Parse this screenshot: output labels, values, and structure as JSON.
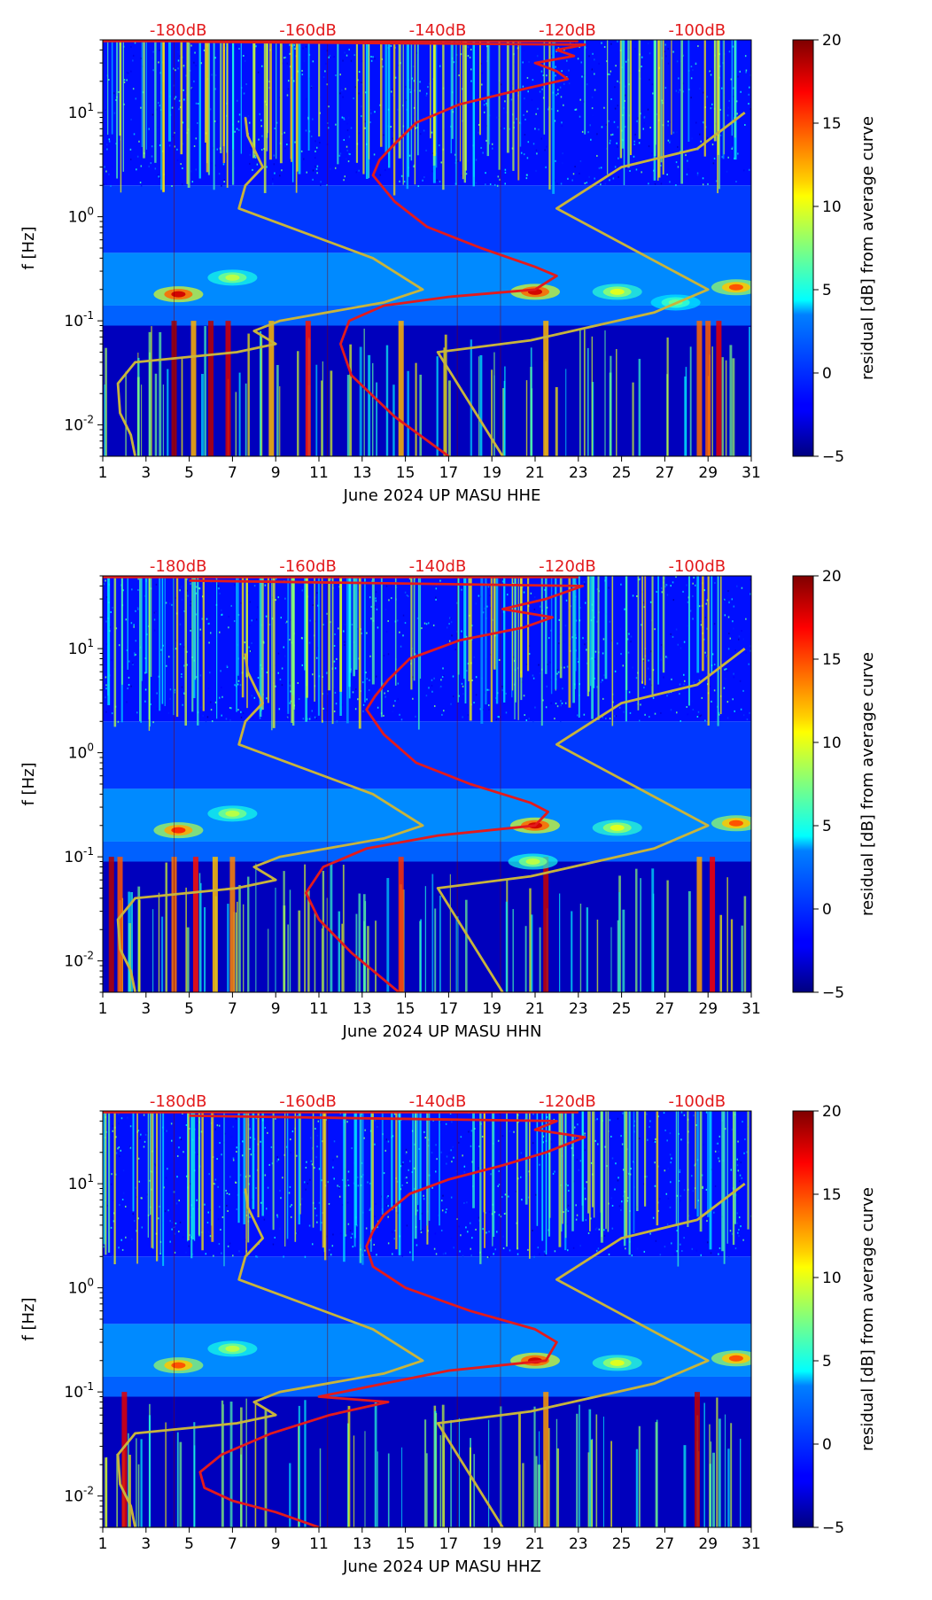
{
  "figure": {
    "colorbar": {
      "label": "residual [dB] from average curve",
      "ticks": [
        -5,
        0,
        5,
        10,
        15,
        20
      ],
      "range": [
        -5,
        20
      ]
    },
    "colors": {
      "noise_curve": "#e31a1c",
      "model_curve": "#c8b43c",
      "db_label": "#e31a1c",
      "background_low": "#00008f",
      "background_mid": "#1e5cff"
    }
  },
  "chart_data": [
    {
      "type": "heatmap",
      "title": "",
      "xlabel": "June 2024 UP MASU  HHE",
      "ylabel": "f [Hz]",
      "x_ticks": [
        "1",
        "3",
        "5",
        "7",
        "9",
        "11",
        "13",
        "15",
        "17",
        "19",
        "21",
        "23",
        "25",
        "27",
        "29",
        "31"
      ],
      "xlim": [
        1,
        31
      ],
      "ylim_hz": [
        0.005,
        50
      ],
      "y_ticks": [
        {
          "exp": "-2",
          "value": 0.01
        },
        {
          "exp": "-1",
          "value": 0.1
        },
        {
          "exp": "0",
          "value": 1
        },
        {
          "exp": "1",
          "value": 10
        }
      ],
      "top_db_labels": [
        "-180dB",
        "-160dB",
        "-140dB",
        "-120dB",
        "-100dB"
      ],
      "top_db_days": [
        4.0,
        10.0,
        16.0,
        22.0,
        28.0
      ],
      "vertical_guide_days": [
        4.3,
        11.4,
        17.4,
        19.4
      ],
      "series": [
        {
          "name": "noise curve (red)",
          "days": [
            17.0,
            14.5,
            12.5,
            12.0,
            12.4,
            14.0,
            17.0,
            21.0,
            22.0,
            21.0,
            18.5,
            16.0,
            14.5,
            13.5,
            13.8,
            14.5,
            15.5,
            17.5,
            20.0,
            22.5,
            22.0,
            21.0,
            22.8,
            22.0,
            23.3,
            5.0
          ],
          "hz": [
            0.005,
            0.012,
            0.03,
            0.06,
            0.1,
            0.14,
            0.17,
            0.2,
            0.27,
            0.33,
            0.5,
            0.8,
            1.4,
            2.5,
            3.5,
            5.0,
            8.0,
            12.0,
            16.0,
            21.0,
            25.0,
            30.0,
            35.0,
            40.0,
            45.0,
            48.0
          ]
        },
        {
          "name": "model curve (olive)",
          "days": [
            2.5,
            2.3,
            1.8,
            1.7,
            2.5,
            7.2,
            9.0,
            8.0,
            9.2,
            14.0,
            15.8,
            13.5,
            7.3,
            7.6,
            8.4,
            7.7,
            7.6
          ],
          "hz": [
            0.005,
            0.008,
            0.013,
            0.025,
            0.04,
            0.05,
            0.06,
            0.08,
            0.1,
            0.15,
            0.2,
            0.4,
            1.2,
            2.0,
            3.0,
            6.0,
            9.0
          ]
        },
        {
          "name": "model curve (olive, right)",
          "days": [
            19.5,
            16.5,
            20.8,
            26.5,
            29.0,
            22.0,
            25.0,
            28.5,
            30.7
          ],
          "hz": [
            0.005,
            0.05,
            0.065,
            0.12,
            0.2,
            1.2,
            3.0,
            4.5,
            10.0
          ]
        }
      ],
      "hotspots": [
        {
          "day": 4.5,
          "hz": 0.18,
          "level": 18
        },
        {
          "day": 21.0,
          "hz": 0.19,
          "level": 18
        },
        {
          "day": 30.3,
          "hz": 0.21,
          "level": 15
        },
        {
          "day": 24.8,
          "hz": 0.19,
          "level": 10
        },
        {
          "day": 7.0,
          "hz": 0.26,
          "level": 9
        },
        {
          "day": 27.5,
          "hz": 0.15,
          "level": 7
        }
      ],
      "low_band_strong_days": [
        4.3,
        5.2,
        6.0,
        6.8,
        28.6,
        29.0,
        29.5,
        21.5,
        14.8,
        8.8,
        10.5
      ]
    },
    {
      "type": "heatmap",
      "title": "",
      "xlabel": "June 2024 UP MASU  HHN",
      "ylabel": "f [Hz]",
      "x_ticks": [
        "1",
        "3",
        "5",
        "7",
        "9",
        "11",
        "13",
        "15",
        "17",
        "19",
        "21",
        "23",
        "25",
        "27",
        "29",
        "31"
      ],
      "xlim": [
        1,
        31
      ],
      "ylim_hz": [
        0.005,
        50
      ],
      "y_ticks": [
        {
          "exp": "-2",
          "value": 0.01
        },
        {
          "exp": "-1",
          "value": 0.1
        },
        {
          "exp": "0",
          "value": 1
        },
        {
          "exp": "1",
          "value": 10
        }
      ],
      "top_db_labels": [
        "-180dB",
        "-160dB",
        "-140dB",
        "-120dB",
        "-100dB"
      ],
      "top_db_days": [
        4.0,
        10.0,
        16.0,
        22.0,
        28.0
      ],
      "vertical_guide_days": [
        4.3,
        11.4,
        17.4,
        19.4
      ],
      "series": [
        {
          "name": "noise curve (red)",
          "days": [
            14.7,
            12.5,
            11.0,
            10.4,
            11.2,
            13.2,
            16.5,
            21.0,
            21.6,
            20.8,
            18.0,
            15.5,
            14.0,
            13.2,
            13.6,
            14.2,
            15.2,
            17.5,
            20.5,
            21.8,
            19.5,
            21.5,
            23.2,
            5.0
          ],
          "hz": [
            0.005,
            0.012,
            0.025,
            0.045,
            0.08,
            0.12,
            0.16,
            0.2,
            0.27,
            0.33,
            0.5,
            0.8,
            1.5,
            2.6,
            3.5,
            5.0,
            8.0,
            12.0,
            16.0,
            20.0,
            24.0,
            30.0,
            40.0,
            45.0
          ]
        },
        {
          "name": "model curve (olive)",
          "days": [
            2.5,
            2.3,
            1.8,
            1.7,
            2.5,
            7.2,
            9.0,
            8.0,
            9.2,
            14.0,
            15.8,
            13.5,
            7.3,
            7.6,
            8.4,
            7.7,
            7.6
          ],
          "hz": [
            0.005,
            0.008,
            0.013,
            0.025,
            0.04,
            0.05,
            0.06,
            0.08,
            0.1,
            0.15,
            0.2,
            0.4,
            1.2,
            2.0,
            3.0,
            6.0,
            9.0
          ]
        },
        {
          "name": "model curve (olive, right)",
          "days": [
            19.5,
            16.5,
            20.8,
            26.5,
            29.0,
            22.0,
            25.0,
            28.5,
            30.7
          ],
          "hz": [
            0.005,
            0.05,
            0.065,
            0.12,
            0.2,
            1.2,
            3.0,
            4.5,
            10.0
          ]
        }
      ],
      "hotspots": [
        {
          "day": 4.5,
          "hz": 0.18,
          "level": 16
        },
        {
          "day": 21.0,
          "hz": 0.2,
          "level": 18
        },
        {
          "day": 30.3,
          "hz": 0.21,
          "level": 15
        },
        {
          "day": 24.8,
          "hz": 0.19,
          "level": 10
        },
        {
          "day": 7.0,
          "hz": 0.26,
          "level": 9
        },
        {
          "day": 20.9,
          "hz": 0.09,
          "level": 9
        }
      ],
      "low_band_strong_days": [
        4.3,
        5.3,
        6.2,
        7.0,
        28.6,
        29.2,
        21.5,
        14.8,
        1.4,
        1.8
      ]
    },
    {
      "type": "heatmap",
      "title": "",
      "xlabel": "June 2024 UP MASU  HHZ",
      "ylabel": "f [Hz]",
      "x_ticks": [
        "1",
        "3",
        "5",
        "7",
        "9",
        "11",
        "13",
        "15",
        "17",
        "19",
        "21",
        "23",
        "25",
        "27",
        "29",
        "31"
      ],
      "xlim": [
        1,
        31
      ],
      "ylim_hz": [
        0.005,
        50
      ],
      "y_ticks": [
        {
          "exp": "-2",
          "value": 0.01
        },
        {
          "exp": "-1",
          "value": 0.1
        },
        {
          "exp": "0",
          "value": 1
        },
        {
          "exp": "1",
          "value": 10
        }
      ],
      "top_db_labels": [
        "-180dB",
        "-160dB",
        "-140dB",
        "-120dB",
        "-100dB"
      ],
      "top_db_days": [
        4.0,
        10.0,
        16.0,
        22.0,
        28.0
      ],
      "vertical_guide_days": [
        4.3,
        11.4,
        17.4,
        19.4
      ],
      "series": [
        {
          "name": "noise curve (red)",
          "days": [
            11.0,
            9.0,
            7.0,
            5.7,
            5.5,
            6.5,
            8.8,
            11.5,
            14.2,
            11.0,
            14.0,
            17.0,
            21.5,
            22.0,
            21.0,
            18.0,
            15.0,
            13.5,
            13.2,
            13.5,
            14.0,
            15.2,
            17.0,
            19.5,
            21.5,
            23.3,
            21.0,
            22.0,
            5.0
          ],
          "hz": [
            0.005,
            0.007,
            0.009,
            0.012,
            0.017,
            0.025,
            0.04,
            0.06,
            0.08,
            0.09,
            0.12,
            0.16,
            0.2,
            0.3,
            0.4,
            0.6,
            1.0,
            1.6,
            2.5,
            3.5,
            5.0,
            8.0,
            11.0,
            15.0,
            20.0,
            28.0,
            33.0,
            40.0,
            45.0
          ]
        },
        {
          "name": "model curve (olive)",
          "days": [
            2.5,
            2.3,
            1.8,
            1.7,
            2.5,
            7.2,
            9.0,
            8.0,
            9.2,
            14.0,
            15.8,
            13.5,
            7.3,
            7.6,
            8.4,
            7.7,
            7.6
          ],
          "hz": [
            0.005,
            0.008,
            0.013,
            0.025,
            0.04,
            0.05,
            0.06,
            0.08,
            0.1,
            0.15,
            0.2,
            0.4,
            1.2,
            2.0,
            3.0,
            6.0,
            9.0
          ]
        },
        {
          "name": "model curve (olive, right)",
          "days": [
            19.5,
            16.5,
            20.8,
            26.5,
            29.0,
            22.0,
            25.0,
            28.5,
            30.7
          ],
          "hz": [
            0.005,
            0.05,
            0.065,
            0.12,
            0.2,
            1.2,
            3.0,
            4.5,
            10.0
          ]
        }
      ],
      "hotspots": [
        {
          "day": 4.5,
          "hz": 0.18,
          "level": 15
        },
        {
          "day": 21.0,
          "hz": 0.2,
          "level": 18
        },
        {
          "day": 30.3,
          "hz": 0.21,
          "level": 15
        },
        {
          "day": 24.8,
          "hz": 0.19,
          "level": 10
        },
        {
          "day": 7.0,
          "hz": 0.26,
          "level": 9
        }
      ],
      "low_band_strong_days": [
        28.5,
        2.0,
        21.5
      ]
    }
  ]
}
